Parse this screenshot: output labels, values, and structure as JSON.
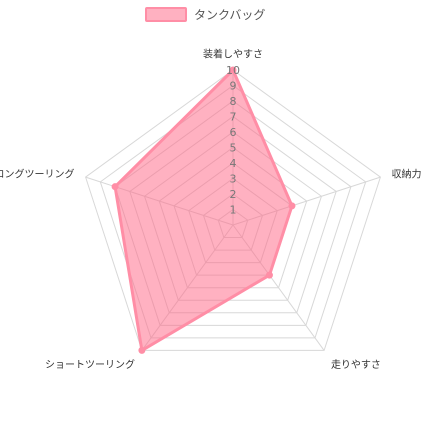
{
  "chart_data": {
    "type": "radar",
    "categories": [
      "装着しやすさ",
      "収納力",
      "走りやすさ",
      "ショートツーリング",
      "ロングツーリング"
    ],
    "series": [
      {
        "name": "タンクバッグ",
        "values": [
          10,
          4,
          4,
          10,
          8
        ]
      }
    ],
    "rlim": [
      0,
      10
    ],
    "ticks": [
      1,
      2,
      3,
      4,
      5,
      6,
      7,
      8,
      9,
      10
    ],
    "legend_position": "top",
    "grid": true
  },
  "colors": {
    "series_fill": "rgba(255,99,132,0.5)",
    "series_stroke": "#ff8ea6",
    "grid": "#d8d8d8",
    "legend_box": "#ffb1c1"
  }
}
